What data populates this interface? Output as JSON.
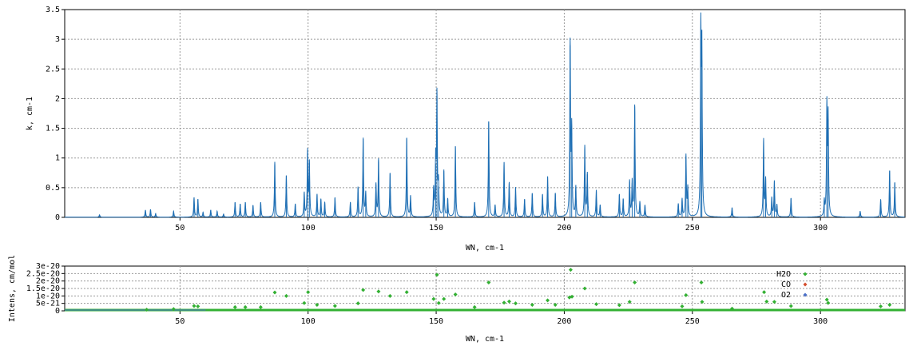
{
  "chart_data": [
    {
      "type": "line",
      "xlabel": "WN, cm-1",
      "ylabel": "k, cm-1",
      "xlim": [
        5,
        333
      ],
      "ylim": [
        0,
        3.5
      ],
      "xticks": [
        50,
        100,
        150,
        200,
        250,
        300
      ],
      "yticks": [
        0,
        0.5,
        1,
        1.5,
        2,
        2.5,
        3,
        3.5
      ],
      "ytick_labels": [
        "0",
        "0.5",
        "1",
        "1.5",
        "2",
        "2.5",
        "3",
        "3.5"
      ],
      "grid": true,
      "series": [
        {
          "color": "#1f6fb4",
          "peaks": [
            [
              18.6,
              0.04
            ],
            [
              36.5,
              0.12
            ],
            [
              38.5,
              0.13
            ],
            [
              40.5,
              0.06
            ],
            [
              47.5,
              0.1
            ],
            [
              55.5,
              0.33
            ],
            [
              57,
              0.3
            ],
            [
              59,
              0.08
            ],
            [
              62,
              0.12
            ],
            [
              64.5,
              0.1
            ],
            [
              67,
              0.05
            ],
            [
              71.5,
              0.25
            ],
            [
              73.5,
              0.22
            ],
            [
              75.5,
              0.25
            ],
            [
              78.5,
              0.2
            ],
            [
              81.5,
              0.25
            ],
            [
              87,
              0.93
            ],
            [
              91.5,
              0.7
            ],
            [
              95,
              0.22
            ],
            [
              98.5,
              0.4
            ],
            [
              99.8,
              1.1
            ],
            [
              100.5,
              0.9
            ],
            [
              103.5,
              0.38
            ],
            [
              105,
              0.3
            ],
            [
              106.5,
              0.25
            ],
            [
              110.5,
              0.33
            ],
            [
              116.5,
              0.25
            ],
            [
              119.5,
              0.5
            ],
            [
              121.5,
              1.32
            ],
            [
              122.5,
              0.4
            ],
            [
              126.5,
              0.55
            ],
            [
              127.5,
              0.97
            ],
            [
              132,
              0.74
            ],
            [
              138.5,
              1.33
            ],
            [
              140,
              0.35
            ],
            [
              149,
              0.45
            ],
            [
              149.8,
              0.9
            ],
            [
              150.3,
              2.02
            ],
            [
              150.9,
              0.52
            ],
            [
              153,
              0.78
            ],
            [
              154.5,
              0.3
            ],
            [
              157.5,
              1.19
            ],
            [
              165,
              0.25
            ],
            [
              170.5,
              1.61
            ],
            [
              173,
              0.2
            ],
            [
              176.5,
              0.92
            ],
            [
              178.5,
              0.58
            ],
            [
              181,
              0.5
            ],
            [
              184.5,
              0.3
            ],
            [
              187.5,
              0.4
            ],
            [
              191.5,
              0.38
            ],
            [
              193.5,
              0.68
            ],
            [
              196.5,
              0.4
            ],
            [
              202.3,
              2.9
            ],
            [
              202.9,
              1.42
            ],
            [
              204.5,
              0.5
            ],
            [
              208,
              1.19
            ],
            [
              209,
              0.72
            ],
            [
              212.5,
              0.45
            ],
            [
              214,
              0.2
            ],
            [
              221.5,
              0.38
            ],
            [
              223,
              0.3
            ],
            [
              225.5,
              0.6
            ],
            [
              226.5,
              0.58
            ],
            [
              227.5,
              1.87
            ],
            [
              229.5,
              0.25
            ],
            [
              231.5,
              0.2
            ],
            [
              244.5,
              0.22
            ],
            [
              246,
              0.3
            ],
            [
              247.5,
              1.03
            ],
            [
              248.2,
              0.48
            ],
            [
              253.3,
              3.0
            ],
            [
              253.7,
              2.65
            ],
            [
              265.5,
              0.16
            ],
            [
              277.8,
              1.3
            ],
            [
              278.6,
              0.62
            ],
            [
              281,
              0.32
            ],
            [
              282,
              0.6
            ],
            [
              283,
              0.2
            ],
            [
              288.5,
              0.32
            ],
            [
              301.5,
              0.25
            ],
            [
              302.5,
              1.84
            ],
            [
              303,
              1.65
            ],
            [
              315.5,
              0.1
            ],
            [
              323.5,
              0.3
            ],
            [
              327,
              0.78
            ],
            [
              329,
              0.58
            ]
          ]
        }
      ]
    },
    {
      "type": "scatter",
      "xlabel": "WN, cm-1",
      "ylabel": "Intens, cm/mol",
      "xlim": [
        5,
        333
      ],
      "ylim": [
        0,
        3e-20
      ],
      "xticks": [
        50,
        100,
        150,
        200,
        250,
        300
      ],
      "yticks": [
        0,
        5e-21,
        1e-20,
        1.5e-20,
        2e-20,
        2.5e-20,
        3e-20
      ],
      "ytick_labels": [
        "0",
        "5e-21",
        "1e-20",
        "1.5e-20",
        "2e-20",
        "2.5e-20",
        "3e-20"
      ],
      "grid": true,
      "legend_position": "top-right",
      "series": [
        {
          "name": "H2O",
          "color": "#33b033",
          "points": [
            [
              37,
              8e-22
            ],
            [
              47.5,
              1.2e-21
            ],
            [
              55.5,
              3.3e-21
            ],
            [
              57,
              3e-21
            ],
            [
              71.5,
              2.5e-21
            ],
            [
              75.5,
              2.5e-21
            ],
            [
              81.5,
              2.5e-21
            ],
            [
              87,
              1.23e-20
            ],
            [
              91.5,
              1e-20
            ],
            [
              98.5,
              5.2e-21
            ],
            [
              100,
              1.25e-20
            ],
            [
              103.5,
              4e-21
            ],
            [
              110.5,
              3.3e-21
            ],
            [
              119.5,
              5e-21
            ],
            [
              121.5,
              1.4e-20
            ],
            [
              127.5,
              1.3e-20
            ],
            [
              132,
              1e-20
            ],
            [
              138.5,
              1.25e-20
            ],
            [
              149,
              8e-21
            ],
            [
              150.3,
              2.42e-20
            ],
            [
              151,
              5.2e-21
            ],
            [
              153,
              8e-21
            ],
            [
              157.5,
              1.1e-20
            ],
            [
              165,
              2.5e-21
            ],
            [
              170.5,
              1.9e-20
            ],
            [
              176.5,
              5.5e-21
            ],
            [
              178.5,
              6.3e-21
            ],
            [
              181,
              5e-21
            ],
            [
              187.5,
              4e-21
            ],
            [
              193.5,
              7e-21
            ],
            [
              196.5,
              4e-21
            ],
            [
              202,
              9e-21
            ],
            [
              202.5,
              2.75e-20
            ],
            [
              203,
              9.5e-21
            ],
            [
              208,
              1.5e-20
            ],
            [
              212.5,
              4.5e-21
            ],
            [
              221.5,
              3.8e-21
            ],
            [
              225.5,
              6e-21
            ],
            [
              227.5,
              1.9e-20
            ],
            [
              246,
              3e-21
            ],
            [
              247.5,
              1.05e-20
            ],
            [
              253.5,
              1.9e-20
            ],
            [
              253.8,
              6e-21
            ],
            [
              265.5,
              1.5e-21
            ],
            [
              278,
              1.25e-20
            ],
            [
              279,
              6.2e-21
            ],
            [
              282,
              6e-21
            ],
            [
              288.5,
              3.2e-21
            ],
            [
              302.5,
              7.5e-21
            ],
            [
              303,
              5.3e-21
            ],
            [
              323.5,
              3e-21
            ],
            [
              327,
              4e-21
            ]
          ]
        },
        {
          "name": "CO",
          "color": "#d44c2c",
          "points": []
        },
        {
          "name": "O2",
          "color": "#4a6fc8",
          "points": []
        }
      ]
    }
  ]
}
